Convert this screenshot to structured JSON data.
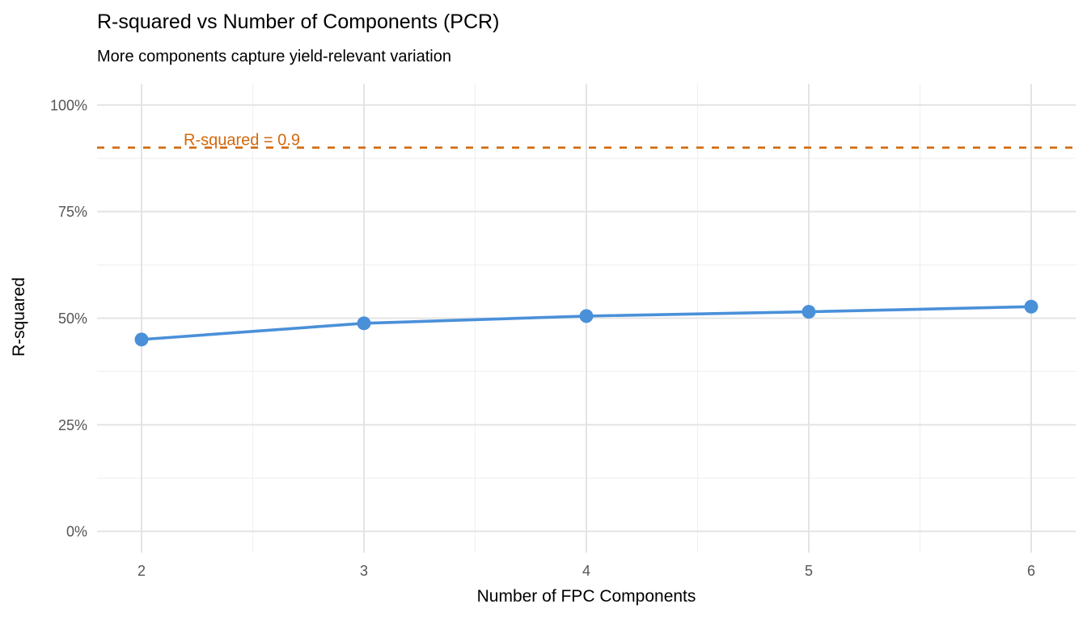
{
  "chart_data": {
    "type": "line",
    "title": "R-squared vs Number of Components (PCR)",
    "subtitle": "More components capture yield-relevant variation",
    "xlabel": "Number of FPC Components",
    "ylabel": "R-squared",
    "x": [
      2,
      3,
      4,
      5,
      6
    ],
    "series": [
      {
        "name": "R-squared",
        "values": [
          0.45,
          0.488,
          0.505,
          0.515,
          0.527
        ]
      }
    ],
    "x_ticks": [
      2,
      3,
      4,
      5,
      6
    ],
    "x_tick_labels": [
      "2",
      "3",
      "4",
      "5",
      "6"
    ],
    "y_ticks": [
      0,
      0.25,
      0.5,
      0.75,
      1.0
    ],
    "y_tick_labels": [
      "0%",
      "25%",
      "50%",
      "75%",
      "100%"
    ],
    "x_minor_ticks": [
      2.5,
      3.5,
      4.5,
      5.5
    ],
    "y_minor_ticks": [
      0.125,
      0.375,
      0.625,
      0.875
    ],
    "xlim": [
      1.8,
      6.2
    ],
    "ylim": [
      -0.05,
      1.05
    ],
    "grid": "on",
    "legend": "none",
    "reference_line": {
      "y": 0.9,
      "label": "R-squared = 0.9",
      "style": "dashed"
    },
    "colors": {
      "series": "#4A90D9",
      "reference": "#D2690E",
      "grid_major": "#E4E4E4",
      "grid_minor": "#F1F1F1",
      "tick_label": "#555555",
      "text": "#000000",
      "background": "#FFFFFF"
    }
  }
}
